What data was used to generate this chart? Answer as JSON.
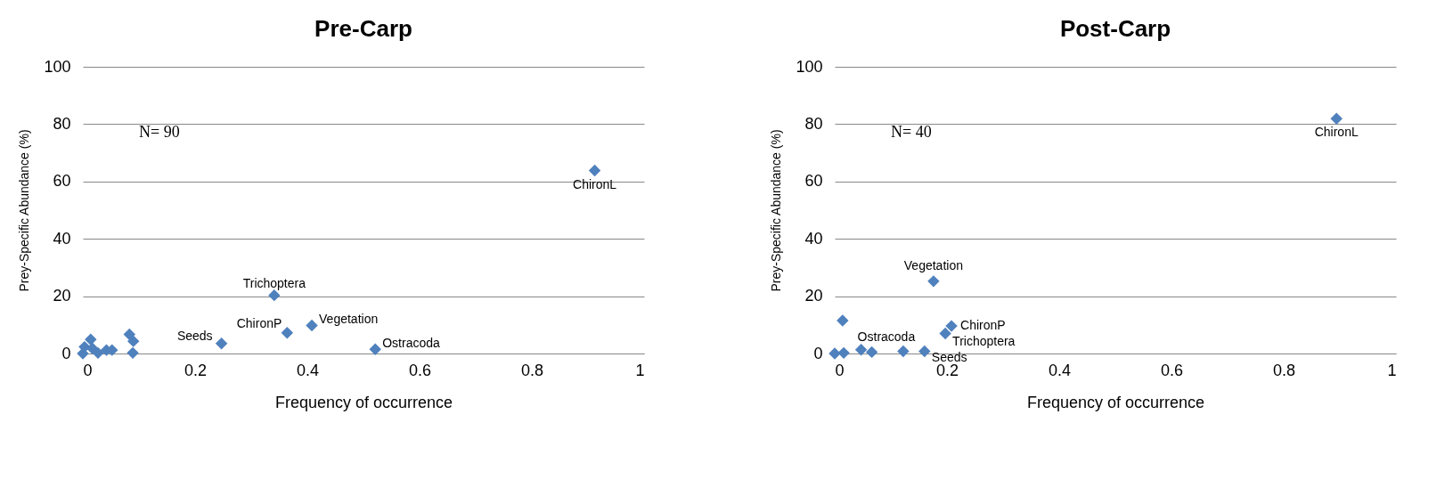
{
  "chart_data": [
    {
      "type": "scatter",
      "title": "Pre-Carp",
      "xlabel": "Frequency of occurrence",
      "ylabel": "Prey-Specific Abundance (%)",
      "series": [
        {
          "color": "#4f81bd",
          "x": [
            0.912,
            0.341,
            0.364,
            0.408,
            0.247,
            0.521,
            0,
            0.003,
            0.014,
            0.017,
            0.027,
            0.042,
            0.052,
            0.083,
            0.09,
            0.089
          ],
          "values": [
            63.8,
            20.3,
            7.2,
            9.8,
            3.5,
            1.5,
            0,
            2.3,
            4.9,
            1.8,
            0.2,
            1.2,
            1.2,
            6.7,
            4.3,
            0.2
          ]
        }
      ],
      "xlim": [
        0,
        1
      ],
      "xticks": [
        0,
        0.2,
        0.4,
        0.6,
        0.8,
        1
      ],
      "ylim": [
        0,
        100
      ],
      "yticks": [
        0,
        20,
        40,
        60,
        80,
        100
      ],
      "grid": "y",
      "marker": "diamond",
      "annotations": [
        "N= 90",
        {
          "text": "ChironL",
          "x": 0.912,
          "y": 63.8
        },
        {
          "text": "Trichoptera",
          "x": 0.341,
          "y": 20.3
        },
        {
          "text": "ChironP",
          "x": 0.364,
          "y": 7.2
        },
        {
          "text": "Vegetation",
          "x": 0.408,
          "y": 9.8
        },
        {
          "text": "Seeds",
          "x": 0.247,
          "y": 3.5
        },
        {
          "text": "Ostracoda",
          "x": 0.521,
          "y": 1.5
        }
      ]
    },
    {
      "type": "scatter",
      "title": "Post-Carp",
      "xlabel": "Frequency of occurrence",
      "ylabel": "Prey-Specific Abundance (%)",
      "series": [
        {
          "color": "#4f81bd",
          "x": [
            0.894,
            0.176,
            0.208,
            0.197,
            0.014,
            0,
            0.016,
            0.047,
            0.066,
            0.122,
            0.16
          ],
          "values": [
            81.9,
            25.2,
            9.6,
            7,
            11.5,
            0,
            0.2,
            1.3,
            0.5,
            0.8,
            0.8
          ]
        }
      ],
      "xlim": [
        0,
        1
      ],
      "xticks": [
        0,
        0.2,
        0.4,
        0.6,
        0.8,
        1
      ],
      "ylim": [
        0,
        100
      ],
      "yticks": [
        0,
        20,
        40,
        60,
        80,
        100
      ],
      "grid": "y",
      "marker": "diamond",
      "annotations": [
        "N= 40",
        {
          "text": "ChironL",
          "x": 0.894,
          "y": 81.9
        },
        {
          "text": "Vegetation",
          "x": 0.176,
          "y": 25.2
        },
        {
          "text": "ChironP",
          "x": 0.208,
          "y": 9.6
        },
        {
          "text": "Trichoptera",
          "x": 0.197,
          "y": 7
        },
        {
          "text": "Seeds",
          "x": 0.16,
          "y": 0.8
        },
        {
          "text": "Ostracoda",
          "x": 0.047,
          "y": 1.3
        }
      ]
    }
  ]
}
